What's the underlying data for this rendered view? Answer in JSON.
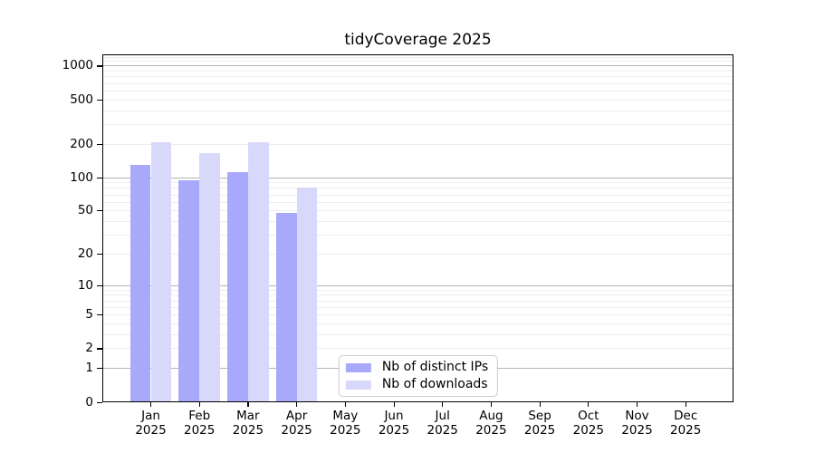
{
  "title": "tidyCoverage 2025",
  "legend": {
    "position": "lower center",
    "items": [
      {
        "label": "Nb of distinct IPs",
        "color": "#a9a9fb"
      },
      {
        "label": "Nb of downloads",
        "color": "#d8d8fb"
      }
    ]
  },
  "chart_data": {
    "type": "bar",
    "title": "tidyCoverage 2025",
    "categories": [
      "Jan 2025",
      "Feb 2025",
      "Mar 2025",
      "Apr 2025",
      "May 2025",
      "Jun 2025",
      "Jul 2025",
      "Aug 2025",
      "Sep 2025",
      "Oct 2025",
      "Nov 2025",
      "Dec 2025"
    ],
    "x_tick_line1": [
      "Jan",
      "Feb",
      "Mar",
      "Apr",
      "May",
      "Jun",
      "Jul",
      "Aug",
      "Sep",
      "Oct",
      "Nov",
      "Dec"
    ],
    "x_tick_line2": "2025",
    "series": [
      {
        "name": "Nb of distinct IPs",
        "color": "#a9a9fb",
        "values": [
          130,
          95,
          112,
          48,
          null,
          null,
          null,
          null,
          null,
          null,
          null,
          null
        ]
      },
      {
        "name": "Nb of downloads",
        "color": "#d8d8fb",
        "values": [
          210,
          165,
          210,
          81,
          null,
          null,
          null,
          null,
          null,
          null,
          null,
          null
        ]
      }
    ],
    "y_axis": {
      "scale": "symlog ln(1+v)",
      "tick_values": [
        0,
        1,
        2,
        5,
        10,
        20,
        50,
        100,
        200,
        500,
        1000
      ],
      "tick_labels": [
        "0",
        "1",
        "2",
        "5",
        "10",
        "20",
        "50",
        "100",
        "200",
        "500",
        "1000"
      ],
      "ylim": [
        0,
        1271
      ],
      "major_gridlines": [
        1,
        10,
        100,
        1000
      ],
      "minor_gridlines": [
        2,
        3,
        4,
        5,
        6,
        7,
        8,
        9,
        20,
        30,
        40,
        50,
        60,
        70,
        80,
        90,
        200,
        300,
        400,
        500,
        600,
        700,
        800,
        900,
        1100,
        1200
      ],
      "grid_major_color": "#b3b3b3",
      "grid_minor_color": "#ededed"
    },
    "xlabel": "",
    "ylabel": "",
    "legend_position": "lower center",
    "grid": "on"
  }
}
